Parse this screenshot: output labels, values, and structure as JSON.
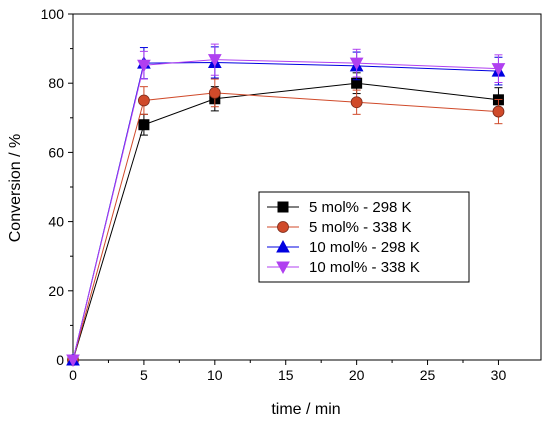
{
  "chart_data": {
    "type": "line",
    "xlabel": "time / min",
    "ylabel": "Conversion / %",
    "xlim": [
      0,
      33
    ],
    "ylim": [
      0,
      100
    ],
    "x_ticks": [
      0,
      5,
      10,
      15,
      20,
      25,
      30
    ],
    "y_ticks": [
      0,
      20,
      40,
      60,
      80,
      100
    ],
    "grid": false,
    "legend_position": "center-right",
    "series": [
      {
        "name": "5 mol% - 298 K",
        "color": "#000000",
        "marker": "square",
        "x": [
          0,
          5,
          10,
          20,
          30
        ],
        "y": [
          0,
          68,
          75.5,
          80,
          75.2
        ],
        "err": [
          0,
          3,
          3.5,
          3,
          3.5
        ]
      },
      {
        "name": "5 mol% - 338 K",
        "color": "#d04a2a",
        "marker": "circle",
        "x": [
          0,
          5,
          10,
          20,
          30
        ],
        "y": [
          0,
          75,
          77.2,
          74.5,
          71.8
        ],
        "err": [
          0,
          4,
          4,
          3.5,
          3.5
        ]
      },
      {
        "name": "10 mol% - 298 K",
        "color": "#0000e0",
        "marker": "triangle-up",
        "x": [
          0,
          5,
          10,
          20,
          30
        ],
        "y": [
          0,
          85.8,
          86,
          85,
          83.5
        ],
        "err": [
          0,
          4.5,
          4.5,
          4,
          4
        ]
      },
      {
        "name": "10 mol% - 338 K",
        "color": "#b040f0",
        "marker": "triangle-down",
        "x": [
          0,
          5,
          10,
          20,
          30
        ],
        "y": [
          0,
          85.2,
          86.8,
          85.8,
          84.2
        ],
        "err": [
          0,
          4,
          4.5,
          4,
          4
        ]
      }
    ]
  }
}
